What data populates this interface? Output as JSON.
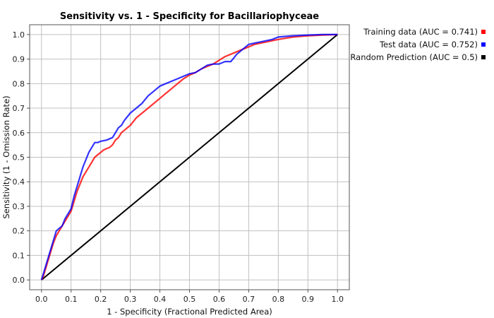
{
  "chart_data": {
    "type": "line",
    "title": "Sensitivity vs. 1 - Specificity for Bacillariophyceae",
    "xlabel": "1 - Specificity  (Fractional Predicted Area)",
    "ylabel": "Sensitivity  (1 - Omission Rate)",
    "xlim": [
      0,
      1
    ],
    "ylim": [
      0,
      1
    ],
    "xticks": [
      "0.0",
      "0.1",
      "0.2",
      "0.3",
      "0.4",
      "0.5",
      "0.6",
      "0.7",
      "0.8",
      "0.9",
      "1.0"
    ],
    "yticks": [
      "0.0",
      "0.1",
      "0.2",
      "0.3",
      "0.4",
      "0.5",
      "0.6",
      "0.7",
      "0.8",
      "0.9",
      "1.0"
    ],
    "grid": true,
    "legend_position": "top-right",
    "series": [
      {
        "name": "Training data (AUC = 0.741)",
        "color": "#ff0000",
        "x": [
          0,
          0.005,
          0.01,
          0.02,
          0.03,
          0.04,
          0.05,
          0.06,
          0.07,
          0.08,
          0.09,
          0.1,
          0.11,
          0.12,
          0.13,
          0.14,
          0.15,
          0.16,
          0.17,
          0.18,
          0.19,
          0.2,
          0.21,
          0.22,
          0.23,
          0.24,
          0.25,
          0.26,
          0.27,
          0.28,
          0.3,
          0.32,
          0.34,
          0.36,
          0.38,
          0.4,
          0.42,
          0.44,
          0.46,
          0.48,
          0.5,
          0.52,
          0.54,
          0.56,
          0.58,
          0.6,
          0.62,
          0.64,
          0.66,
          0.68,
          0.7,
          0.72,
          0.74,
          0.76,
          0.78,
          0.8,
          0.85,
          0.9,
          0.95,
          1.0
        ],
        "y": [
          0,
          0.01,
          0.03,
          0.07,
          0.11,
          0.15,
          0.18,
          0.2,
          0.22,
          0.24,
          0.26,
          0.28,
          0.32,
          0.36,
          0.39,
          0.42,
          0.44,
          0.46,
          0.48,
          0.5,
          0.51,
          0.52,
          0.53,
          0.535,
          0.54,
          0.55,
          0.57,
          0.58,
          0.6,
          0.61,
          0.63,
          0.66,
          0.68,
          0.7,
          0.72,
          0.74,
          0.76,
          0.78,
          0.8,
          0.82,
          0.835,
          0.845,
          0.86,
          0.87,
          0.88,
          0.895,
          0.91,
          0.92,
          0.93,
          0.94,
          0.95,
          0.96,
          0.965,
          0.97,
          0.975,
          0.98,
          0.99,
          0.995,
          0.998,
          1.0
        ]
      },
      {
        "name": "Test data (AUC = 0.752)",
        "color": "#0000ff",
        "x": [
          0,
          0.005,
          0.01,
          0.02,
          0.03,
          0.04,
          0.05,
          0.06,
          0.07,
          0.08,
          0.09,
          0.1,
          0.11,
          0.12,
          0.13,
          0.14,
          0.15,
          0.16,
          0.17,
          0.18,
          0.19,
          0.2,
          0.22,
          0.24,
          0.25,
          0.26,
          0.27,
          0.28,
          0.3,
          0.32,
          0.34,
          0.36,
          0.38,
          0.4,
          0.42,
          0.44,
          0.46,
          0.48,
          0.5,
          0.52,
          0.54,
          0.56,
          0.58,
          0.6,
          0.62,
          0.64,
          0.66,
          0.68,
          0.7,
          0.72,
          0.74,
          0.76,
          0.78,
          0.8,
          0.85,
          0.9,
          0.95,
          1.0
        ],
        "y": [
          0,
          0.02,
          0.04,
          0.08,
          0.12,
          0.16,
          0.2,
          0.21,
          0.22,
          0.25,
          0.27,
          0.29,
          0.34,
          0.38,
          0.42,
          0.46,
          0.49,
          0.52,
          0.54,
          0.56,
          0.56,
          0.565,
          0.57,
          0.58,
          0.6,
          0.62,
          0.63,
          0.65,
          0.68,
          0.7,
          0.72,
          0.75,
          0.77,
          0.79,
          0.8,
          0.81,
          0.82,
          0.83,
          0.84,
          0.845,
          0.86,
          0.875,
          0.88,
          0.88,
          0.89,
          0.89,
          0.92,
          0.94,
          0.96,
          0.965,
          0.97,
          0.975,
          0.98,
          0.99,
          0.995,
          0.998,
          1.0,
          1.0
        ]
      },
      {
        "name": "Random Prediction (AUC = 0.5)",
        "color": "#000000",
        "x": [
          0,
          1
        ],
        "y": [
          0,
          1
        ]
      }
    ]
  }
}
